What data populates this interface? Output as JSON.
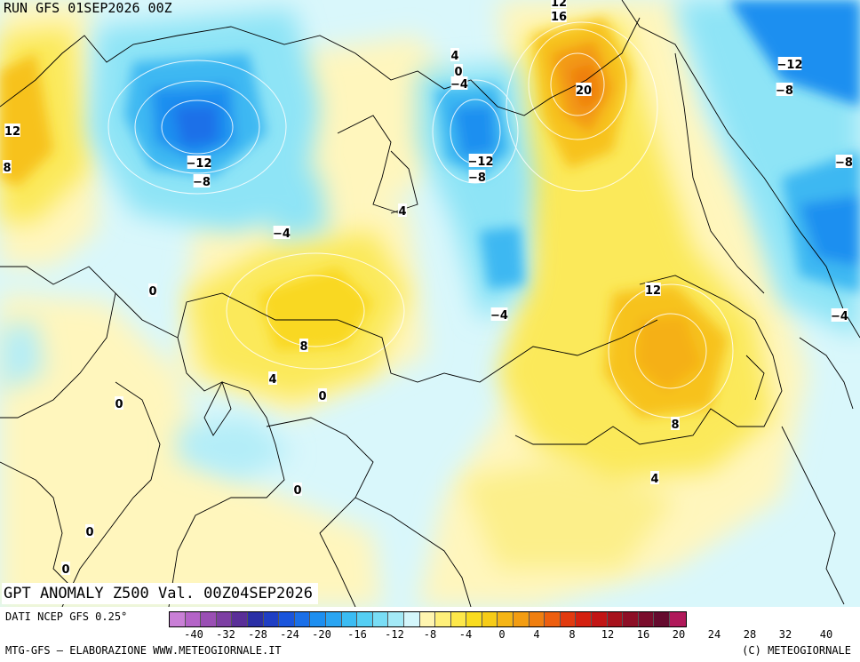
{
  "header": {
    "run_title": "RUN GFS 01SEP2026 00Z",
    "anomaly_title": "GPT ANOMALY Z500 Val. 00Z04SEP2026"
  },
  "footer": {
    "data_source": "DATI NCEP GFS 0.25°",
    "credit": "MTG-GFS — ELABORAZIONE WWW.METEOGIORNALE.IT",
    "copyright": "(C) METEOGIORNALE"
  },
  "scale": {
    "colors": [
      "#c97fd6",
      "#b463c7",
      "#9a4fb4",
      "#7d3fa3",
      "#5a2f98",
      "#2a2fa6",
      "#1f3fc4",
      "#1a55dc",
      "#1a6fe8",
      "#1e8ff0",
      "#2aa5f2",
      "#3bbcf3",
      "#55cff4",
      "#79ddf5",
      "#a4eaf7",
      "#d4f6fb",
      "#fff5b0",
      "#fff07a",
      "#fde84a",
      "#f9dc1f",
      "#f7cc17",
      "#f5b515",
      "#f39d12",
      "#f07f10",
      "#ed5e0e",
      "#e23a0f",
      "#d4200f",
      "#c21515",
      "#a7121c",
      "#8d0f26",
      "#7a0d2c",
      "#650b2e",
      "#b0195a"
    ],
    "tick_labels": [
      "-40",
      "-32",
      "-28",
      "-24",
      "-20",
      "-16",
      "-12",
      "-8",
      "-4",
      "0",
      "4",
      "8",
      "12",
      "16",
      "20",
      "24",
      "28",
      "32",
      "40"
    ]
  },
  "map": {
    "colors": {
      "land_outline": "#000000",
      "contour_line": "#ffffff",
      "background": "#d9f7fb"
    },
    "contour_labels": [
      {
        "text": "12"
      },
      {
        "text": "16"
      },
      {
        "text": "20"
      },
      {
        "text": "4"
      },
      {
        "text": "0"
      },
      {
        "text": "-4"
      },
      {
        "text": "-12"
      },
      {
        "text": "-8"
      },
      {
        "text": "-12"
      },
      {
        "text": "-8"
      },
      {
        "text": "-4"
      },
      {
        "text": "4"
      },
      {
        "text": "12"
      },
      {
        "text": "8"
      },
      {
        "text": "0"
      },
      {
        "text": "-12"
      },
      {
        "text": "-8"
      },
      {
        "text": "-8"
      },
      {
        "text": "-4"
      },
      {
        "text": "-4"
      },
      {
        "text": "8"
      },
      {
        "text": "4"
      },
      {
        "text": "0"
      },
      {
        "text": "0"
      },
      {
        "text": "12"
      },
      {
        "text": "8"
      },
      {
        "text": "4"
      },
      {
        "text": "0"
      },
      {
        "text": "0"
      },
      {
        "text": "0"
      }
    ]
  }
}
